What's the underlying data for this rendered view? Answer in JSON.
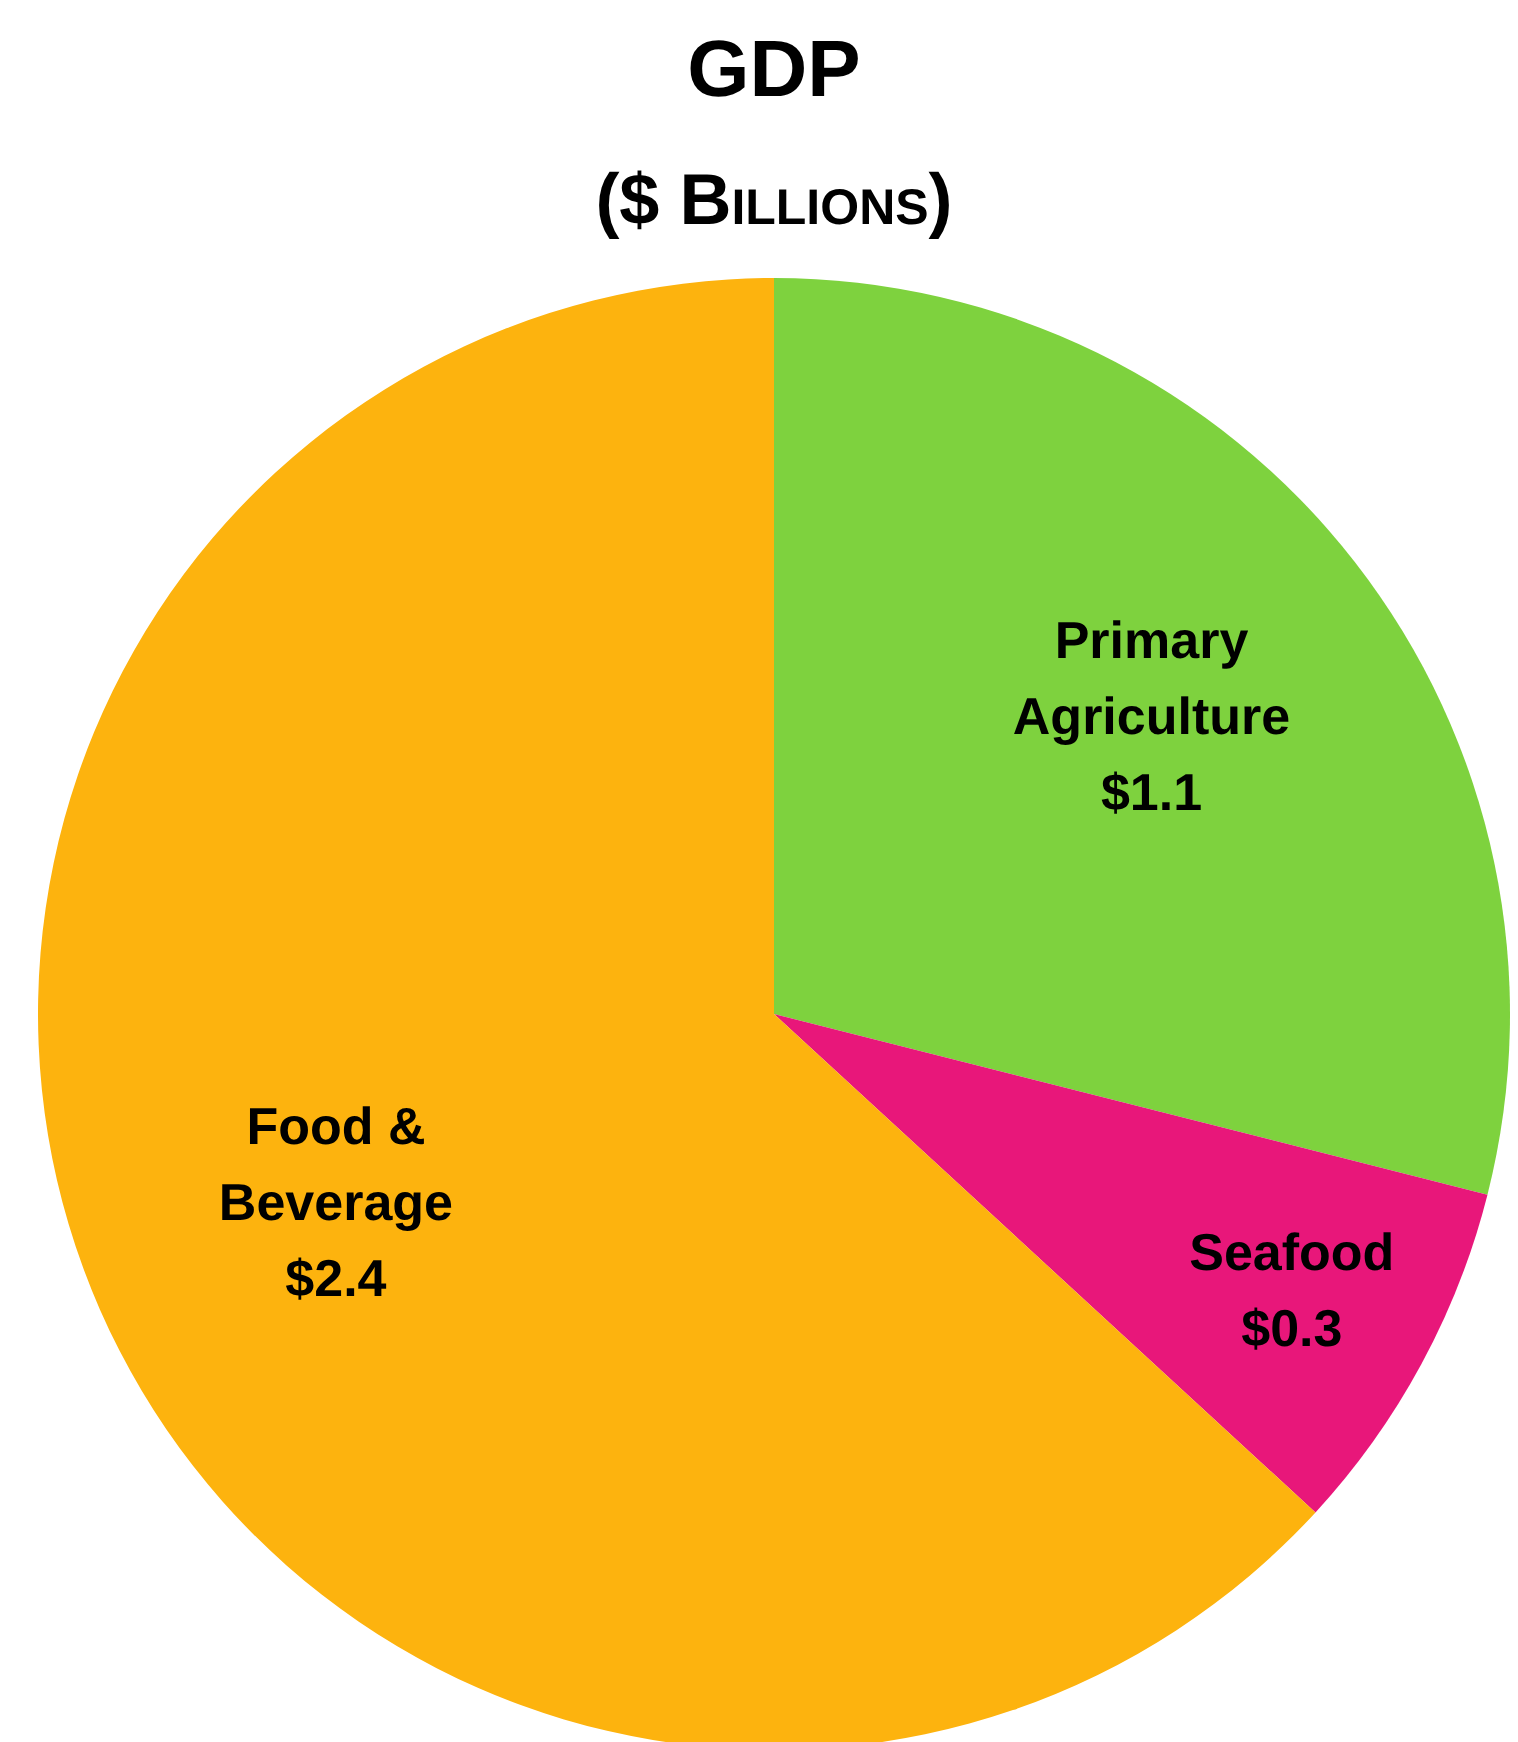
{
  "chart_data": {
    "type": "pie",
    "title": "GDP",
    "subtitle": "($ Billions)",
    "categories": [
      "Primary Agriculture",
      "Seafood",
      "Food & Beverage"
    ],
    "values": [
      1.1,
      0.3,
      2.4
    ],
    "colors": [
      "#7ed23e",
      "#e8177a",
      "#fdb30e"
    ],
    "value_labels": [
      "$1.1",
      "$0.3",
      "$2.4"
    ]
  }
}
